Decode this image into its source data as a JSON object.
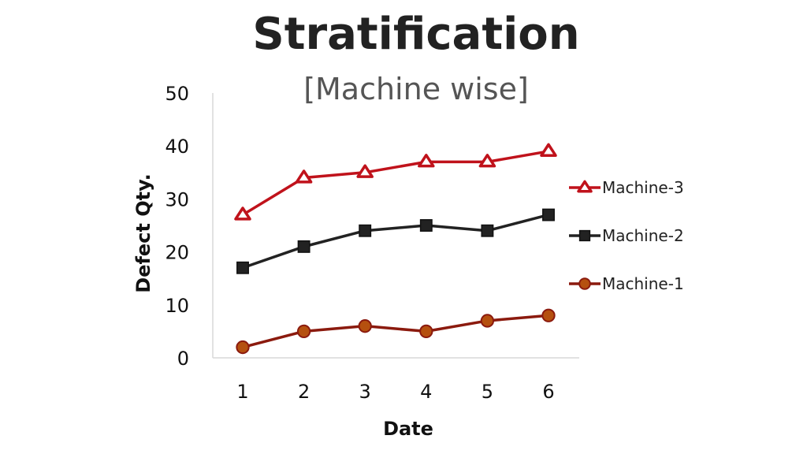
{
  "chart_data": {
    "type": "line",
    "title": "Stratification",
    "subtitle": "[Machine wise]",
    "xlabel": "Date",
    "ylabel": "Defect Qty.",
    "x": [
      1,
      2,
      3,
      4,
      5,
      6
    ],
    "x_tick_labels": [
      "1",
      "2",
      "3",
      "4",
      "5",
      "6"
    ],
    "ylim": [
      0,
      50
    ],
    "y_ticks": [
      0,
      10,
      20,
      30,
      40,
      50
    ],
    "grid": false,
    "legend_position": "right",
    "series": [
      {
        "name": "Machine-3",
        "values": [
          27,
          34,
          35,
          37,
          37,
          39
        ],
        "color": "#c0121b",
        "marker": "triangle"
      },
      {
        "name": "Machine-2",
        "values": [
          17,
          21,
          24,
          25,
          24,
          27
        ],
        "color": "#222222",
        "marker": "square"
      },
      {
        "name": "Machine-1",
        "values": [
          2,
          5,
          6,
          5,
          7,
          8
        ],
        "color": "#8b1a0e",
        "marker": "circle",
        "marker_fill": "#b5500f"
      }
    ]
  }
}
